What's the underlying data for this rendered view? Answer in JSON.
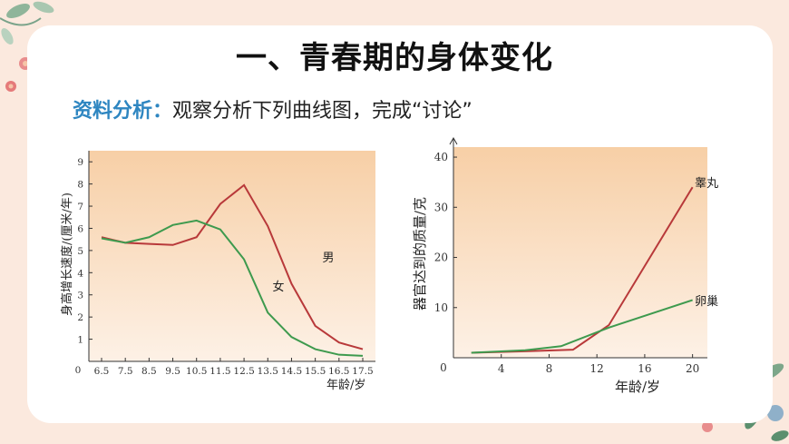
{
  "page": {
    "title": "一、青春期的身体变化",
    "subtitle_lead": "资料分析：",
    "subtitle_text": "观察分析下列曲线图，完成“讨论”"
  },
  "chart_data": [
    {
      "type": "line",
      "x": [
        6.5,
        7.5,
        8.5,
        9.5,
        10.5,
        11.5,
        12.5,
        13.5,
        14.5,
        15.5,
        16.5,
        17.5
      ],
      "x_ticks": [
        "6.5",
        "7.5",
        "8.5",
        "9.5",
        "10.5",
        "11.5",
        "12.5",
        "13.5",
        "14.5",
        "15.5",
        "16.5",
        "17.5"
      ],
      "y_ticks": [
        "1",
        "2",
        "3",
        "4",
        "5",
        "6",
        "7",
        "8",
        "9"
      ],
      "origin_label": "0",
      "xlabel": "年龄/岁",
      "ylabel": "身高增长速度/(厘米/年)",
      "ylim": [
        0,
        9.5
      ],
      "series": [
        {
          "name": "男",
          "color": "#b8393a",
          "values": [
            5.6,
            5.35,
            5.3,
            5.25,
            5.6,
            7.1,
            7.95,
            6.1,
            3.5,
            1.6,
            0.85,
            0.55
          ]
        },
        {
          "name": "女",
          "color": "#3e9a4e",
          "values": [
            5.55,
            5.35,
            5.6,
            6.15,
            6.35,
            5.95,
            4.6,
            2.2,
            1.1,
            0.55,
            0.3,
            0.25
          ]
        }
      ]
    },
    {
      "type": "line",
      "x_ticks": [
        "4",
        "8",
        "12",
        "16",
        "20"
      ],
      "y_ticks": [
        "10",
        "20",
        "30",
        "40"
      ],
      "origin_label": "0",
      "xlabel": "年龄/岁",
      "ylabel": "器官达到的质量/克",
      "xlim": [
        0,
        22
      ],
      "ylim": [
        0,
        42
      ],
      "series": [
        {
          "name": "睾丸",
          "color": "#b8393a",
          "x": [
            1.5,
            6,
            10,
            13,
            20
          ],
          "values": [
            1,
            1.3,
            1.6,
            6.5,
            34
          ]
        },
        {
          "name": "卵巢",
          "color": "#3e9a4e",
          "x": [
            1.5,
            6,
            9,
            13,
            20
          ],
          "values": [
            1,
            1.5,
            2.3,
            6,
            11.5
          ]
        }
      ]
    }
  ]
}
